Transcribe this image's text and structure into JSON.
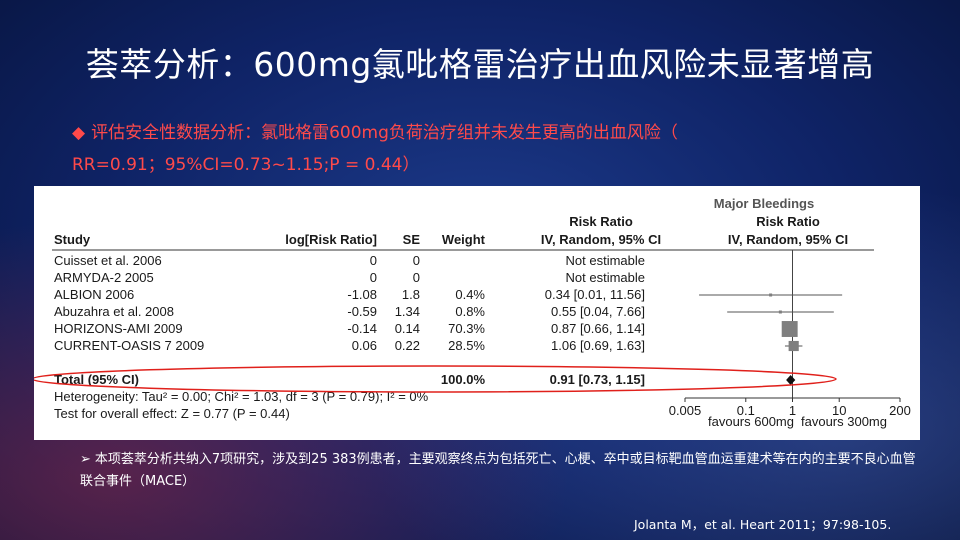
{
  "slide": {
    "title": "荟萃分析：600mg氯吡格雷治疗出血风险未显著增高",
    "bullet_symbol": "◆",
    "bullet_line1": "评估安全性数据分析：氯吡格雷600mg负荷治疗组并未发生更高的出血风险（",
    "bullet_line2": "RR=0.91；95%CI=0.73~1.15;P = 0.44）",
    "note_arrow": "➢",
    "note_text": "本项荟萃分析共纳入7项研究，涉及到25 383例患者，主要观察终点为包括死亡、心梗、卒中或目标靶血管血运重建术等在内的主要不良心血管联合事件（MACE）",
    "citation": "Jolanta M，et al. Heart 2011；97:98-105."
  },
  "forest": {
    "panel_title": "Major Bleedings",
    "rr_header": "Risk Ratio",
    "rr_subheader": "IV, Random, 95% CI",
    "plot_header": "Risk Ratio",
    "plot_subheader": "IV, Random, 95% CI",
    "col_study": "Study",
    "col_logrr": "log[Risk Ratio]",
    "col_se": "SE",
    "col_weight": "Weight",
    "rows": [
      {
        "study": "Cuisset et al. 2006",
        "logrr": "0",
        "se": "0",
        "weight": "",
        "ci": "Not estimable"
      },
      {
        "study": "ARMYDA-2 2005",
        "logrr": "0",
        "se": "0",
        "weight": "",
        "ci": "Not estimable"
      },
      {
        "study": "ALBION 2006",
        "logrr": "-1.08",
        "se": "1.8",
        "weight": "0.4%",
        "ci": "0.34 [0.01, 11.56]"
      },
      {
        "study": "Abuzahra et al. 2008",
        "logrr": "-0.59",
        "se": "1.34",
        "weight": "0.8%",
        "ci": "0.55 [0.04, 7.66]"
      },
      {
        "study": "HORIZONS-AMI 2009",
        "logrr": "-0.14",
        "se": "0.14",
        "weight": "70.3%",
        "ci": "0.87 [0.66, 1.14]"
      },
      {
        "study": "CURRENT-OASIS 7 2009",
        "logrr": "0.06",
        "se": "0.22",
        "weight": "28.5%",
        "ci": "1.06 [0.69, 1.63]"
      }
    ],
    "total": {
      "label": "Total (95% CI)",
      "weight": "100.0%",
      "ci": "0.91 [0.73, 1.15]"
    },
    "heterogeneity": "Heterogeneity: Tau² = 0.00; Chi² = 1.03, df = 3 (P = 0.79); I² = 0%",
    "overall_effect": "Test for overall effect: Z = 0.77 (P = 0.44)",
    "axis_ticks": [
      "0.005",
      "0.1",
      "1",
      "10",
      "200"
    ],
    "favours_left": "favours 600mg",
    "favours_right": "favours 300mg"
  },
  "chart_data": {
    "type": "forest",
    "scale": "log",
    "xlim": [
      0.005,
      200
    ],
    "ticks": [
      0.005,
      0.1,
      1,
      10,
      200
    ],
    "points": [
      {
        "study": "ALBION 2006",
        "rr": 0.34,
        "lo": 0.01,
        "hi": 11.56,
        "weight": 0.4
      },
      {
        "study": "Abuzahra et al. 2008",
        "rr": 0.55,
        "lo": 0.04,
        "hi": 7.66,
        "weight": 0.8
      },
      {
        "study": "HORIZONS-AMI 2009",
        "rr": 0.87,
        "lo": 0.66,
        "hi": 1.14,
        "weight": 70.3
      },
      {
        "study": "CURRENT-OASIS 7 2009",
        "rr": 1.06,
        "lo": 0.69,
        "hi": 1.63,
        "weight": 28.5
      }
    ],
    "total": {
      "rr": 0.91,
      "lo": 0.73,
      "hi": 1.15
    },
    "colors": {
      "marker": "#7f7f7f",
      "diamond": "#111111",
      "highlight": "#e0201b"
    }
  }
}
